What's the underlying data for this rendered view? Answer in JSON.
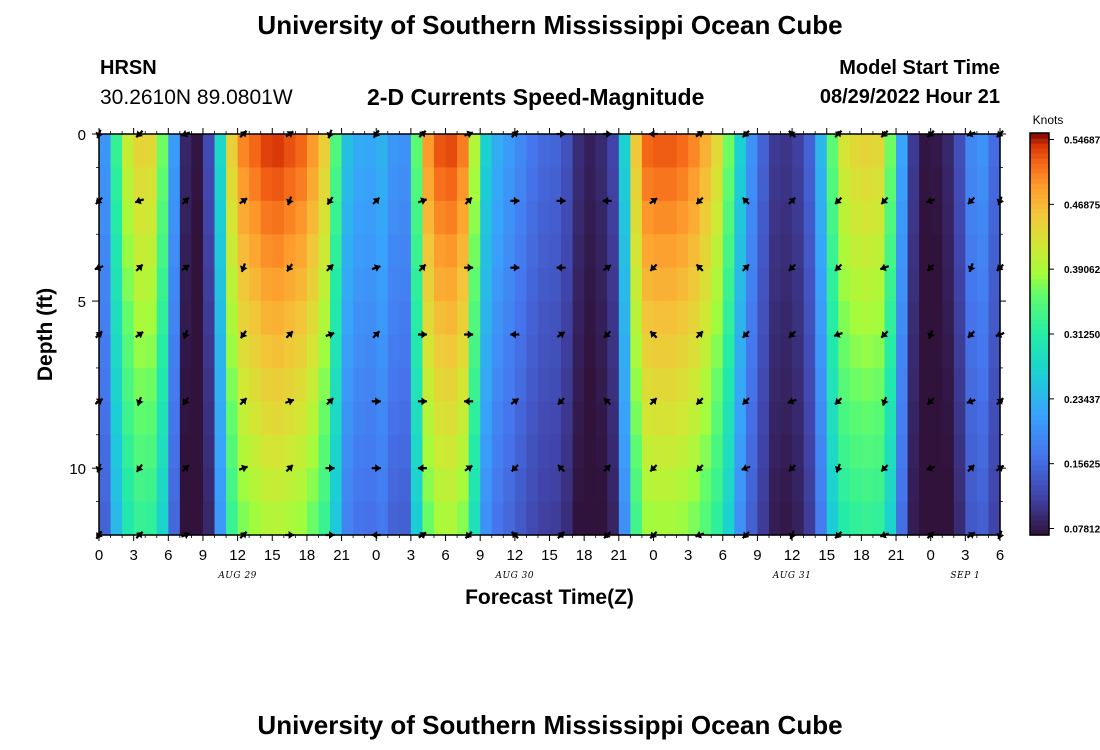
{
  "page": {
    "title": "University of Southern Mississippi Ocean Cube",
    "title_repeat": "University of Southern Mississippi Ocean Cube",
    "station": "HRSN",
    "coordinates": "30.2610N  89.0801W",
    "subtitle": "2-D Currents Speed-Magnitude",
    "model_start_label": "Model Start Time",
    "model_start_value": "08/29/2022 Hour 21"
  },
  "chart_data": {
    "type": "heatmap",
    "title": "2-D Currents Speed-Magnitude",
    "xlabel": "Forecast Time(Z)",
    "ylabel": "Depth (ft)",
    "x_range_hours": [
      0,
      78
    ],
    "ylim": [
      0,
      12
    ],
    "y_ticks": [
      0,
      5,
      10
    ],
    "x_tick_labels": [
      "0",
      "3",
      "6",
      "9",
      "12",
      "15",
      "18",
      "21",
      "0",
      "3",
      "6",
      "9",
      "12",
      "15",
      "18",
      "21",
      "0",
      "3",
      "6",
      "9",
      "12",
      "15",
      "18",
      "21",
      "0",
      "3",
      "6"
    ],
    "date_labels": [
      {
        "label": "AUG 29",
        "hour": 12
      },
      {
        "label": "AUG 30",
        "hour": 36
      },
      {
        "label": "AUG 31",
        "hour": 60
      },
      {
        "label": "SEP 1",
        "hour": 75
      }
    ],
    "depths_ft": [
      0,
      1,
      2,
      3,
      4,
      5,
      6,
      7,
      8,
      9,
      10,
      11,
      12
    ],
    "speed_profile": {
      "hours": [
        0,
        1,
        2,
        3,
        5,
        6,
        7,
        8,
        9,
        10,
        11,
        12,
        15,
        18,
        20,
        21,
        22,
        24,
        25,
        26,
        27,
        28,
        30,
        32,
        33,
        34,
        35,
        36,
        38,
        40,
        42,
        44,
        45,
        46,
        47,
        48,
        50,
        52,
        54,
        56,
        57,
        58,
        59,
        60,
        61,
        62,
        63,
        64,
        66,
        68,
        69,
        70,
        71,
        72,
        74,
        75,
        76,
        77,
        78
      ],
      "knots": [
        0.13,
        0.28,
        0.38,
        0.45,
        0.44,
        0.3,
        0.12,
        0.06,
        0.09,
        0.16,
        0.4,
        0.5,
        0.55,
        0.52,
        0.43,
        0.27,
        0.23,
        0.22,
        0.25,
        0.16,
        0.24,
        0.48,
        0.55,
        0.5,
        0.3,
        0.24,
        0.22,
        0.2,
        0.16,
        0.15,
        0.08,
        0.1,
        0.14,
        0.4,
        0.52,
        0.53,
        0.53,
        0.5,
        0.42,
        0.22,
        0.18,
        0.12,
        0.1,
        0.11,
        0.12,
        0.18,
        0.3,
        0.42,
        0.45,
        0.44,
        0.3,
        0.14,
        0.08,
        0.07,
        0.1,
        0.16,
        0.22,
        0.18,
        0.14
      ]
    },
    "color_scale": {
      "label": "Knots",
      "min": 0.0703,
      "max": 0.5547,
      "ticks": [
        "0.54687",
        "0.46875",
        "0.39062",
        "0.31250",
        "0.23437",
        "0.15625",
        "0.07812"
      ],
      "tick_values": [
        0.54687,
        0.46875,
        0.39062,
        0.3125,
        0.23437,
        0.15625,
        0.07812
      ]
    },
    "vector_rows_depth_ft": [
      0,
      2,
      4,
      6,
      8,
      10,
      12
    ],
    "vector_columns_hours": [
      0,
      3.5,
      7.5,
      12.5,
      16.5,
      20,
      24,
      28,
      32,
      36,
      40,
      44,
      48,
      52,
      56,
      60,
      64,
      68,
      72,
      75.5,
      78
    ],
    "vector_directions_deg": [
      250,
      225,
      200,
      45,
      35,
      250,
      235,
      45,
      20,
      45,
      0,
      0,
      180,
      35,
      225,
      135,
      45,
      225,
      225,
      200,
      225
    ]
  }
}
